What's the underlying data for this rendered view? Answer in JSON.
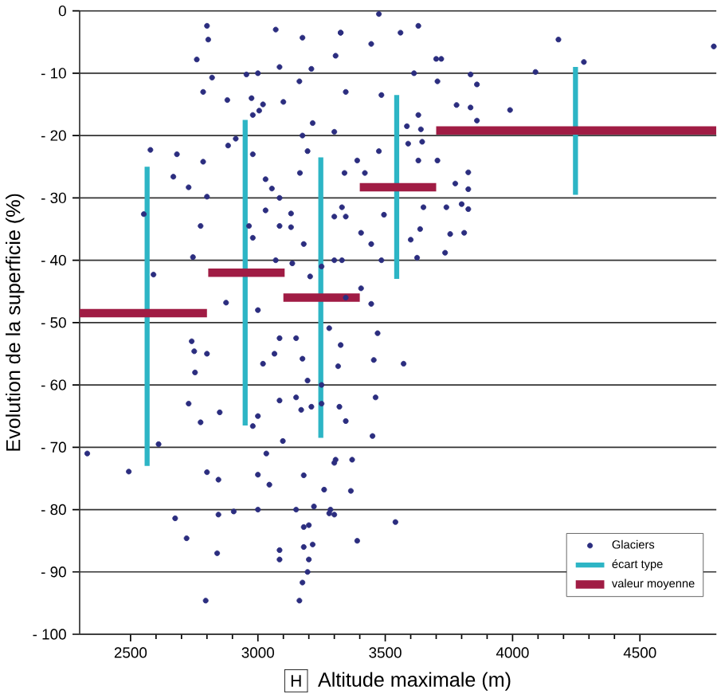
{
  "chart_data": {
    "type": "scatter",
    "xlabel": "Altitude maximale (m)",
    "ylabel": "Evolution de la superficie (%)",
    "annotations": [
      "H"
    ],
    "xlim": [
      2300,
      4800
    ],
    "ylim": [
      -100,
      0
    ],
    "xticks": [
      2500,
      3000,
      3500,
      4000,
      4500
    ],
    "yticks": [
      {
        "value": -100,
        "label": "- 100"
      },
      {
        "value": -90,
        "label": "- 90"
      },
      {
        "value": -80,
        "label": "- 80"
      },
      {
        "value": -70,
        "label": "- 70"
      },
      {
        "value": -60,
        "label": "- 60"
      },
      {
        "value": -50,
        "label": "- 50"
      },
      {
        "value": -40,
        "label": "- 40"
      },
      {
        "value": -30,
        "label": "- 30"
      },
      {
        "value": -20,
        "label": "- 20"
      },
      {
        "value": -10,
        "label": "- 10"
      },
      0
    ],
    "grid": "y",
    "legend": "bottom right",
    "series": [
      {
        "name": "Glaciers",
        "color": "#2b2d7f",
        "marker": "circle",
        "x": [
          2800,
          2805,
          2760,
          2785,
          2820,
          3070,
          3175,
          3325,
          2955,
          3000,
          2578,
          2682,
          2668,
          2728,
          2785,
          2800,
          2552,
          2775,
          2745,
          2590,
          2883,
          2913,
          2980,
          3005,
          3020,
          2880,
          2975,
          3085,
          3163,
          3210,
          3475,
          3325,
          3560,
          3630,
          3445,
          4180,
          4790,
          4280,
          4090,
          3305,
          3700,
          3720,
          3613,
          3705,
          3835,
          3860,
          3780,
          3835,
          3990,
          3860,
          3705,
          3826,
          3826,
          3775,
          3826,
          3800,
          3740,
          3755,
          3810,
          3735,
          3637,
          3600,
          3625,
          3630,
          3640,
          3645,
          3630,
          3650,
          3572,
          3462,
          3450,
          3540,
          3390,
          3365,
          3370,
          3305,
          3345,
          3320,
          3280,
          3470,
          3455,
          2330,
          2493,
          2610,
          2740,
          2750,
          2753,
          2728,
          2775,
          2800,
          2850,
          2800,
          2845,
          2675,
          2720,
          2845,
          2840,
          2795,
          2905,
          3000,
          3000,
          3045,
          3085,
          3085,
          3163,
          3175,
          3195,
          3200,
          3180,
          3215,
          3180,
          3200,
          3150,
          3220,
          3260,
          3180,
          3300,
          3285,
          3300,
          3033,
          3098,
          2980,
          3000,
          3020,
          3065,
          3085,
          3150,
          3175,
          3195,
          3085,
          3150,
          3170,
          3210,
          3250,
          3250,
          3315,
          3325,
          3280,
          3000,
          2875,
          2980,
          3030,
          3055,
          3085,
          3030,
          2965,
          2980,
          3085,
          3130,
          3130,
          3180,
          3070,
          3135,
          3205,
          3250,
          3300,
          3330,
          3165,
          3195,
          3215,
          3300,
          3340,
          3300,
          3330,
          3175,
          3100,
          3345,
          3390,
          3420,
          3345,
          3405,
          3445,
          3485,
          3495,
          3475,
          3485,
          3585,
          3590,
          3405,
          3345,
          3445
        ],
        "values": [
          -2.4,
          -4.6,
          -7.8,
          -13,
          -10.7,
          -3,
          -4.3,
          -3.5,
          -10.2,
          -10,
          -22.3,
          -23,
          -26.6,
          -28.3,
          -24.2,
          -29.8,
          -32.6,
          -34.5,
          -39.5,
          -42.3,
          -21.6,
          -20.5,
          -16.7,
          -16,
          -15,
          -14.3,
          -14,
          -9,
          -11.3,
          -9.3,
          -0.5,
          -3.5,
          -3.5,
          -2.4,
          -5.3,
          -4.6,
          -5.7,
          -8.2,
          -9.8,
          -7.2,
          -7.7,
          -7.7,
          -10,
          -11.3,
          -10.2,
          -11.8,
          -15.1,
          -15.5,
          -15.9,
          -17.6,
          -24,
          -25.9,
          -28.6,
          -27.7,
          -31.8,
          -31,
          -31.5,
          -35.8,
          -35.6,
          -38.8,
          -35,
          -36.7,
          -39.6,
          -16.7,
          -19,
          -21,
          -24,
          -31.5,
          -56.6,
          -62,
          -68.2,
          -82,
          -85,
          -77,
          -72,
          -72,
          -65.8,
          -63.5,
          -80.6,
          -51.7,
          -56,
          -71,
          -73.9,
          -69.5,
          -53,
          -54.6,
          -58,
          -63,
          -66,
          -55,
          -64.4,
          -74,
          -75.2,
          -81.4,
          -84.6,
          -80.8,
          -87,
          -94.6,
          -80.3,
          -80,
          -74.4,
          -76,
          -86.5,
          -88,
          -94.6,
          -91.7,
          -90,
          -88,
          -86,
          -85.6,
          -82.8,
          -82.5,
          -80,
          -79.5,
          -76.8,
          -74.5,
          -80.8,
          -80,
          -72.5,
          -71,
          -69,
          -66.6,
          -65,
          -56.6,
          -55,
          -52.5,
          -52.5,
          -55.8,
          -59.3,
          -62.5,
          -62,
          -64,
          -63.5,
          -63,
          -60,
          -57,
          -53.6,
          -50.9,
          -48,
          -46.8,
          -23,
          -27,
          -28.5,
          -30,
          -32,
          -34.5,
          -36.4,
          -34.5,
          -32.5,
          -34.7,
          -37.4,
          -40,
          -40.5,
          -42.6,
          -41,
          -40,
          -40,
          -26,
          -22.5,
          -18,
          -19.4,
          -26,
          -33,
          -31.5,
          -20,
          -14.6,
          -13,
          -24,
          -26,
          -33,
          -35.6,
          -37.4,
          -40,
          -32.7,
          -22.5,
          -13.5,
          -18.5,
          -21.3,
          -44.5,
          -46,
          -47
        ]
      },
      {
        "name": "écart type",
        "type": "line",
        "color": "#2db5c5",
        "marker": "none",
        "x": [
          2565,
          2565,
          null,
          2950,
          2950,
          null,
          3247,
          3247,
          null,
          3545,
          3545,
          null,
          4247,
          4247
        ],
        "values": [
          -25,
          -73,
          null,
          -17.5,
          -66.5,
          null,
          -23.5,
          -68.5,
          null,
          -13.5,
          -43,
          null,
          -9,
          -29.5
        ]
      },
      {
        "name": "valeur moyenne",
        "type": "line",
        "color": "#a01c44",
        "marker": "none",
        "x": [
          2300,
          2800,
          null,
          2805,
          3105,
          null,
          3100,
          3400,
          null,
          3400,
          3700,
          null,
          3700,
          4800
        ],
        "values": [
          -48.5,
          -48.5,
          null,
          -42,
          -42,
          null,
          -46,
          -46,
          null,
          -28.3,
          -28.3,
          null,
          -19.2,
          -19.2
        ]
      }
    ]
  }
}
